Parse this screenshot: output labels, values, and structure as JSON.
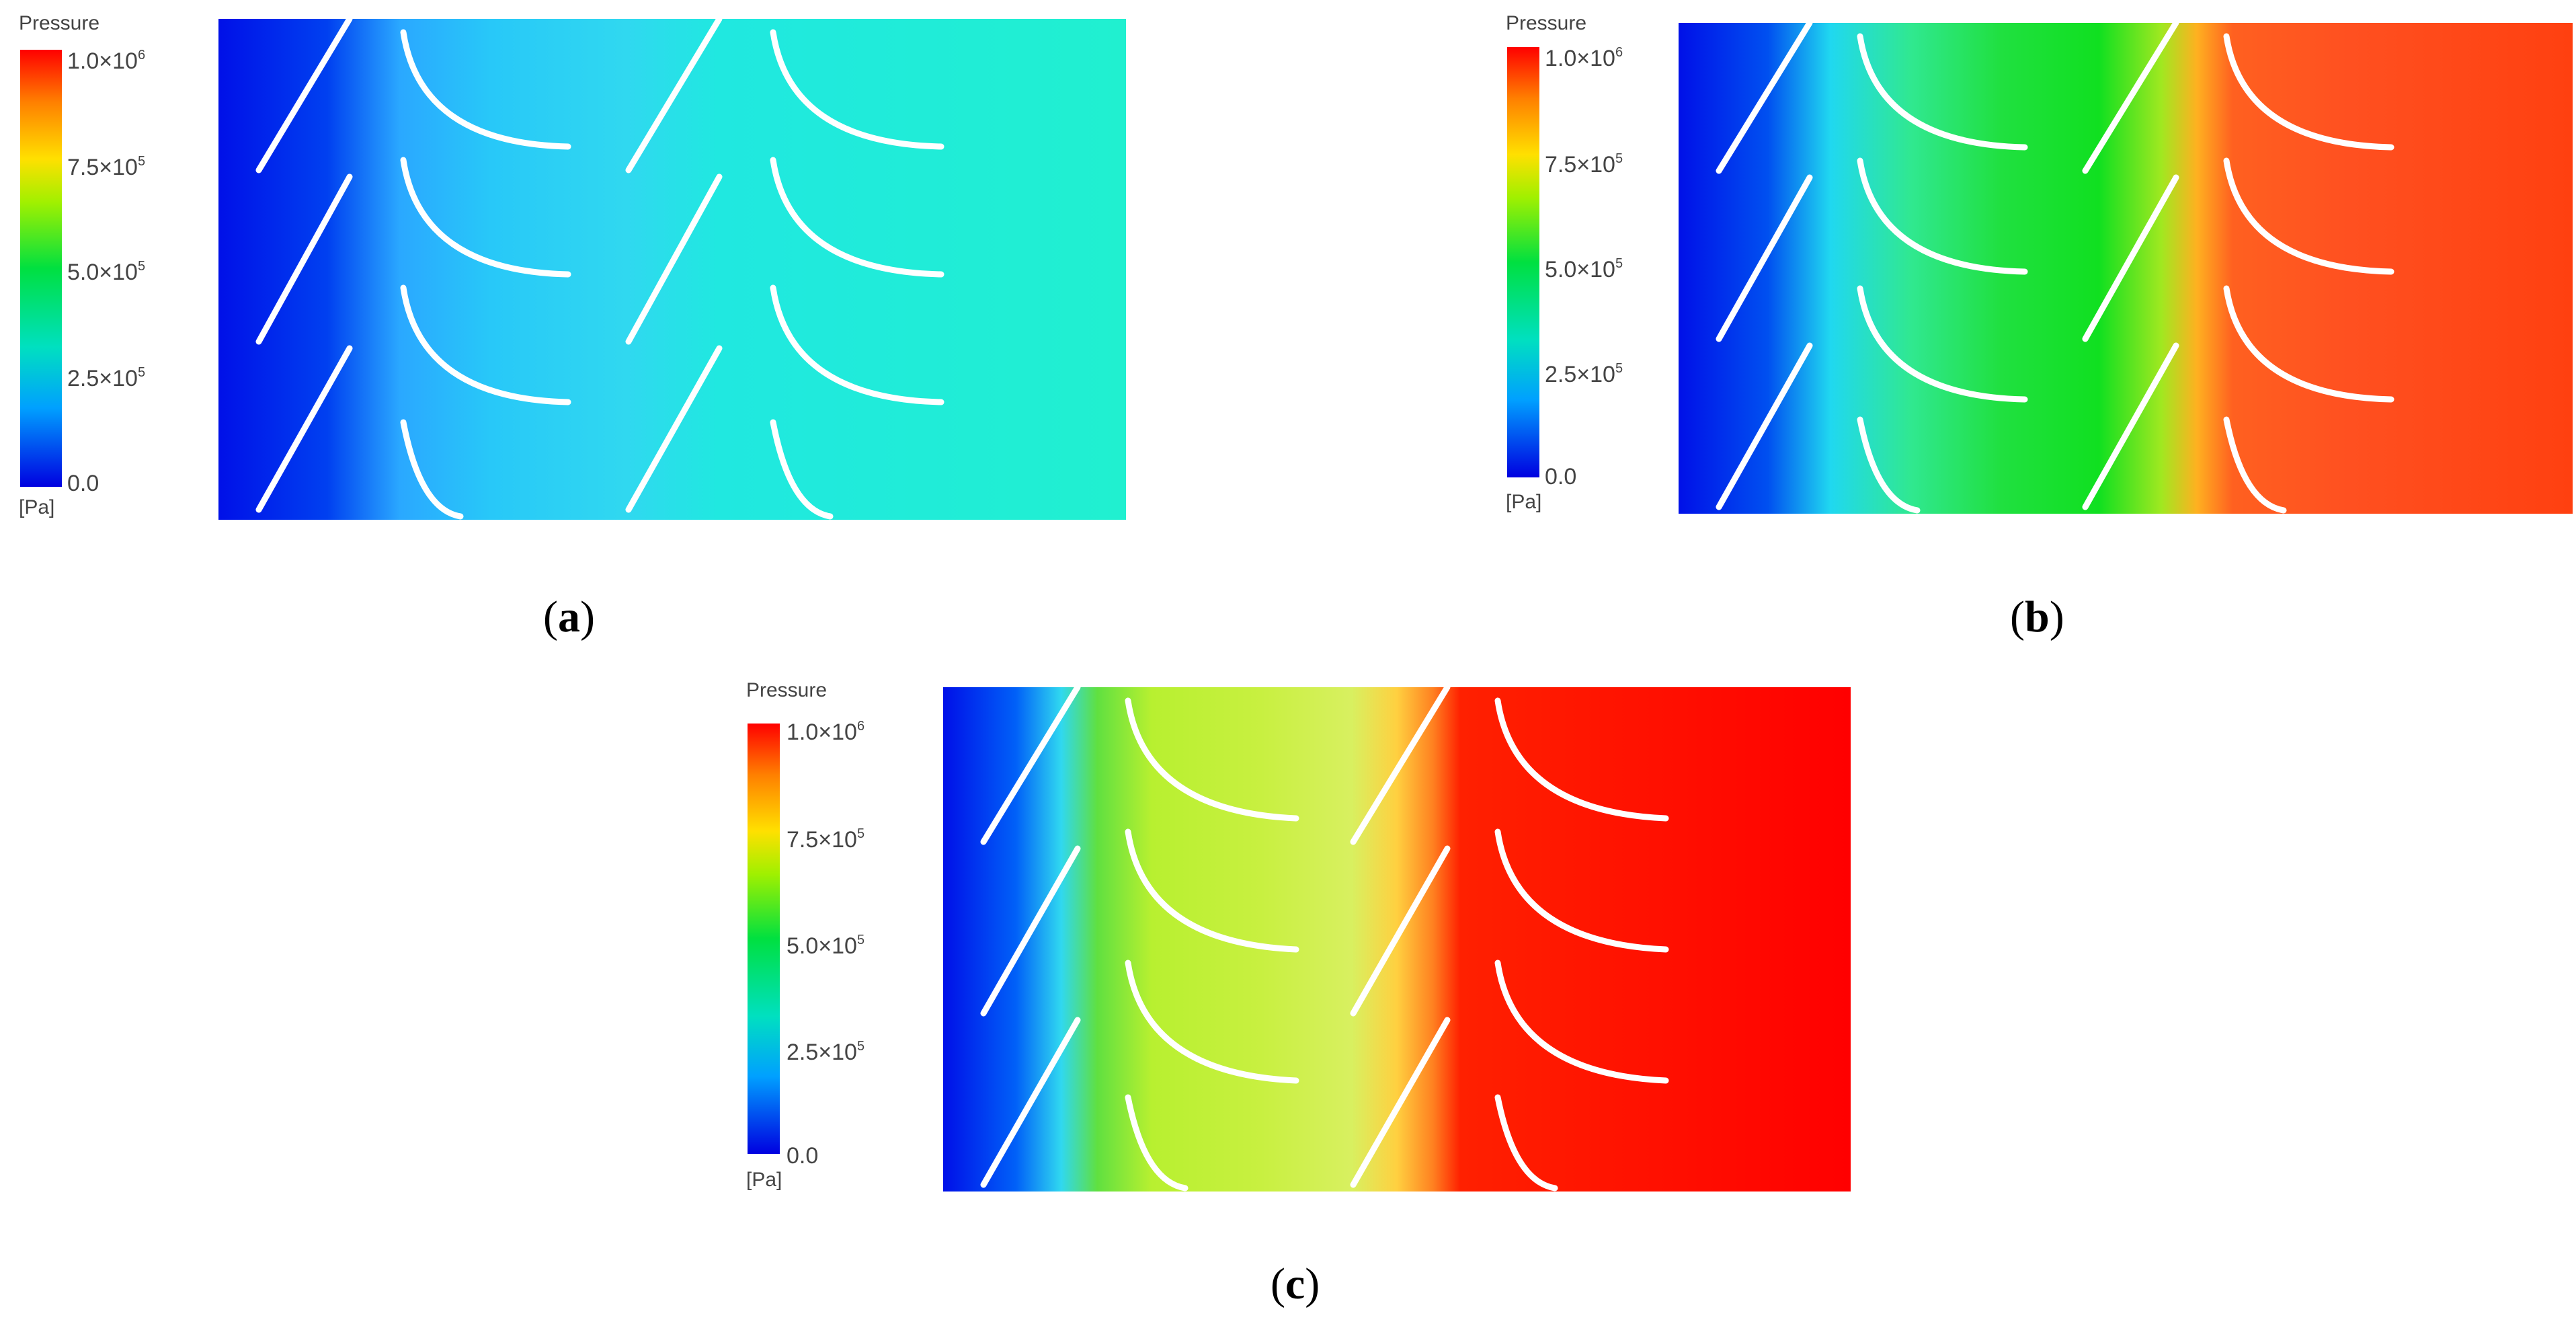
{
  "legend": {
    "title": "Pressure",
    "unit": "[Pa]",
    "ticks": [
      {
        "mantissa": "1.0×10",
        "exp": "6"
      },
      {
        "mantissa": "7.5×10",
        "exp": "5"
      },
      {
        "mantissa": "5.0×10",
        "exp": "5"
      },
      {
        "mantissa": "2.5×10",
        "exp": "5"
      },
      {
        "mantissa": "0.0",
        "exp": ""
      }
    ],
    "colors": [
      "#0000e0",
      "#00a0ff",
      "#00e0c0",
      "#00e040",
      "#a0f000",
      "#ffe000",
      "#ff8000",
      "#ff0000"
    ]
  },
  "panels": [
    {
      "caption_letter": "a"
    },
    {
      "caption_letter": "b"
    },
    {
      "caption_letter": "c"
    }
  ]
}
